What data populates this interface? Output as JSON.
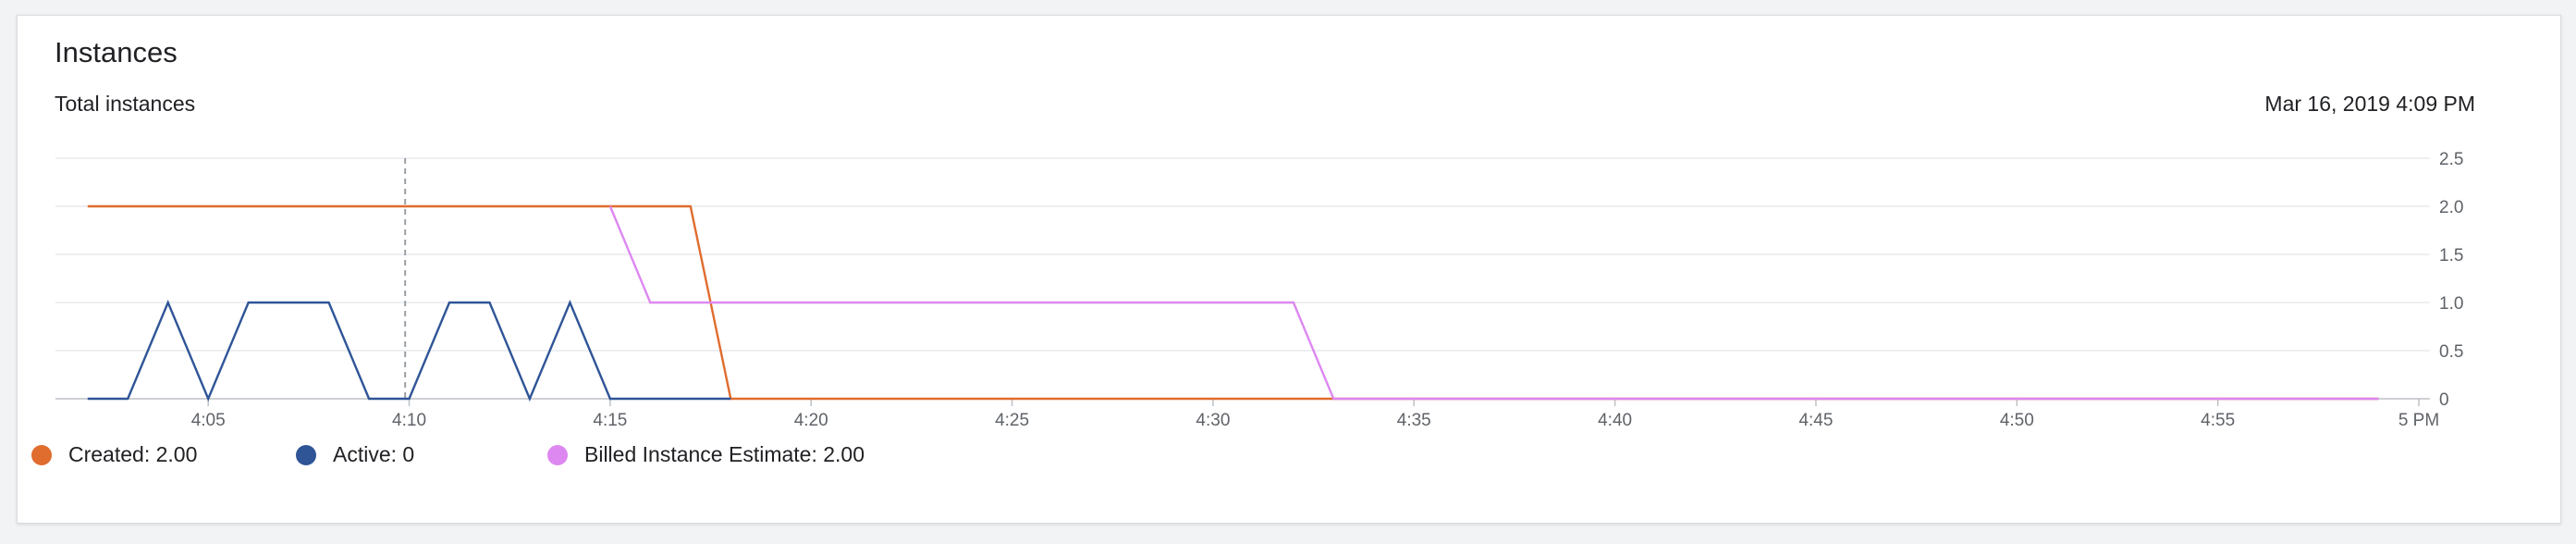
{
  "card": {
    "title": "Instances",
    "subtitle": "Total instances",
    "timestamp": "Mar 16, 2019 4:09 PM"
  },
  "legend": [
    {
      "label": "Created: 2.00",
      "color": "#e06c2e"
    },
    {
      "label": "Active: 0",
      "color": "#2f5597"
    },
    {
      "label": "Billed Instance Estimate: 2.00",
      "color": "#dd88f0"
    }
  ],
  "chart_data": {
    "type": "line",
    "title": "Instances",
    "subtitle": "Total instances",
    "x_unit": "minutes past 4 PM",
    "xlim": [
      1.2,
      60
    ],
    "ylim": [
      0,
      2.5
    ],
    "grid": true,
    "legend_position": "bottom-left",
    "y_ticks": [
      "0",
      "0.5",
      "1.0",
      "1.5",
      "2.0",
      "2.5"
    ],
    "x_ticks": [
      {
        "value": 5,
        "label": "4:05"
      },
      {
        "value": 10,
        "label": "4:10"
      },
      {
        "value": 15,
        "label": "4:15"
      },
      {
        "value": 20,
        "label": "4:20"
      },
      {
        "value": 25,
        "label": "4:25"
      },
      {
        "value": 30,
        "label": "4:30"
      },
      {
        "value": 35,
        "label": "4:35"
      },
      {
        "value": 40,
        "label": "4:40"
      },
      {
        "value": 45,
        "label": "4:45"
      },
      {
        "value": 50,
        "label": "4:50"
      },
      {
        "value": 55,
        "label": "4:55"
      },
      {
        "value": 60,
        "label": "5 PM"
      }
    ],
    "cursor_x": 9.9,
    "series": [
      {
        "name": "Created",
        "color": "#e06c2e",
        "points": [
          [
            2,
            2
          ],
          [
            17,
            2
          ],
          [
            18,
            0
          ],
          [
            59,
            0
          ]
        ]
      },
      {
        "name": "Active",
        "color": "#2f5597",
        "points": [
          [
            2,
            0
          ],
          [
            3,
            0
          ],
          [
            4,
            1
          ],
          [
            5,
            0
          ],
          [
            6,
            1
          ],
          [
            7,
            1
          ],
          [
            8,
            1
          ],
          [
            9,
            0
          ],
          [
            10,
            0
          ],
          [
            11,
            1
          ],
          [
            12,
            1
          ],
          [
            13,
            0
          ],
          [
            14,
            1
          ],
          [
            15,
            0
          ],
          [
            18,
            0
          ]
        ]
      },
      {
        "name": "Billed Instance Estimate",
        "color": "#dd88f0",
        "points": [
          [
            15,
            2
          ],
          [
            16,
            1
          ],
          [
            32,
            1
          ],
          [
            33,
            0
          ],
          [
            59,
            0
          ]
        ]
      }
    ]
  }
}
